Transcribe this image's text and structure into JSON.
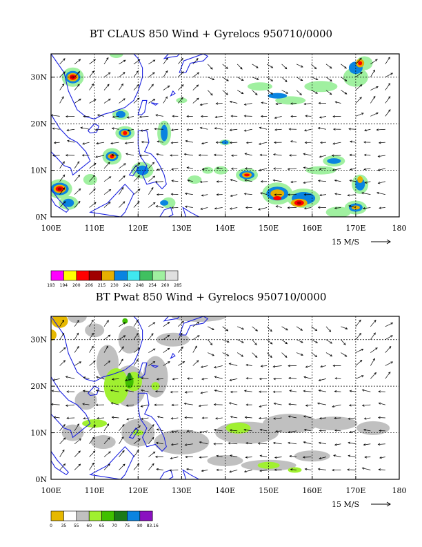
{
  "panels": [
    {
      "title": "BT CLAUS 850 Wind + Gyrelocs 950710/0000",
      "field": "CLAUS brightness temperature",
      "lat_ticks": [
        "0N",
        "10N",
        "20N",
        "30N"
      ],
      "lon_ticks": [
        "100E",
        "110E",
        "120E",
        "130E",
        "140E",
        "150E",
        "160E",
        "170E",
        "180"
      ],
      "reference_vector": "15 M/S",
      "colorbar": {
        "labels": [
          "193",
          "194",
          "200",
          "206",
          "215",
          "230",
          "242",
          "248",
          "254",
          "260",
          "285"
        ],
        "colors": [
          "#ff00ff",
          "#ffff00",
          "#ff0000",
          "#a00000",
          "#e6b000",
          "#0a84e0",
          "#40e8f0",
          "#40c060",
          "#a0f0a0",
          "#e0e0e0"
        ]
      }
    },
    {
      "title": "BT Pwat 850 Wind + Gyrelocs 950710/0000",
      "field": "Precipitable water",
      "lat_ticks": [
        "0N",
        "10N",
        "20N",
        "30N"
      ],
      "lon_ticks": [
        "100E",
        "110E",
        "120E",
        "130E",
        "140E",
        "150E",
        "160E",
        "170E",
        "180"
      ],
      "reference_vector": "15 M/S",
      "colorbar": {
        "labels": [
          "0",
          "35",
          "55",
          "60",
          "65",
          "70",
          "75",
          "80",
          "83.16"
        ],
        "colors": [
          "#e6b800",
          "#ffffff",
          "#c0c0c0",
          "#a0f030",
          "#40c000",
          "#1a7a1a",
          "#0a84e0",
          "#8a10c0"
        ]
      }
    }
  ],
  "map_extent": {
    "lon": [
      100,
      180
    ],
    "lat": [
      0,
      35
    ]
  }
}
